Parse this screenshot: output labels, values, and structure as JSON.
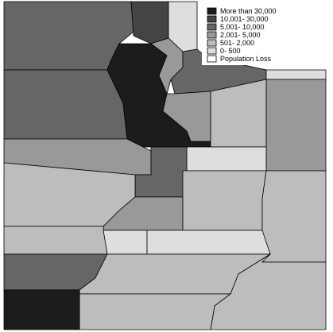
{
  "legend": {
    "items": [
      {
        "label": "More than 30,000",
        "color": "#1c1c1c"
      },
      {
        "label": "10,001- 30,000",
        "color": "#444444"
      },
      {
        "label": "5,001- 10,000",
        "color": "#666666"
      },
      {
        "label": "2,001- 5,000",
        "color": "#999999"
      },
      {
        "label": "501- 2,000",
        "color": "#bdbdbd"
      },
      {
        "label": "0- 500",
        "color": "#dedede"
      },
      {
        "label": "Population Loss",
        "color": "#ffffff"
      }
    ]
  }
}
